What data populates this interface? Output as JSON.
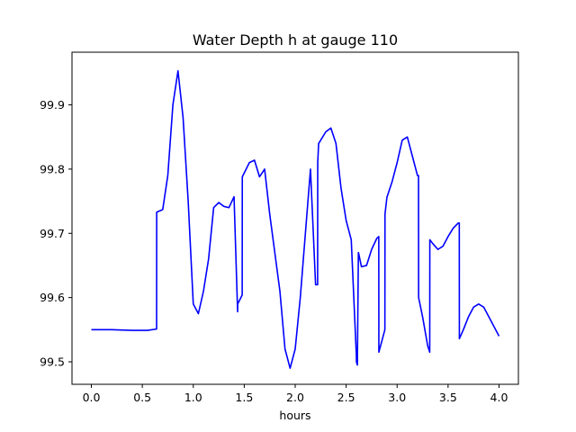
{
  "chart_data": {
    "type": "line",
    "title": "Water Depth h at gauge 110",
    "xlabel": "hours",
    "ylabel": "",
    "xlim": [
      -0.19,
      4.19
    ],
    "ylim": [
      99.465,
      99.982
    ],
    "x_ticks": [
      0.0,
      0.5,
      1.0,
      1.5,
      2.0,
      2.5,
      3.0,
      3.5,
      4.0
    ],
    "x_tick_labels": [
      "0.0",
      "0.5",
      "1.0",
      "1.5",
      "2.0",
      "2.5",
      "3.0",
      "3.5",
      "4.0"
    ],
    "y_ticks": [
      99.5,
      99.6,
      99.7,
      99.8,
      99.9
    ],
    "y_tick_labels": [
      "99.5",
      "99.6",
      "99.7",
      "99.8",
      "99.9"
    ],
    "grid": false,
    "colors": {
      "line": "#0000ff",
      "axes": "#000000",
      "background": "#ffffff"
    },
    "series": [
      {
        "x": [
          0.0,
          0.2,
          0.4,
          0.55,
          0.64,
          0.641,
          0.7,
          0.75,
          0.8,
          0.85,
          0.9,
          0.95,
          1.0,
          1.05,
          1.1,
          1.15,
          1.2,
          1.25,
          1.3,
          1.35,
          1.4,
          1.435,
          1.436,
          1.48,
          1.481,
          1.55,
          1.6,
          1.65,
          1.7,
          1.75,
          1.8,
          1.85,
          1.9,
          1.95,
          2.0,
          2.05,
          2.1,
          2.15,
          2.2,
          2.22,
          2.221,
          2.23,
          2.231,
          2.3,
          2.35,
          2.4,
          2.45,
          2.5,
          2.55,
          2.6,
          2.601,
          2.61,
          2.62,
          2.621,
          2.65,
          2.7,
          2.75,
          2.8,
          2.82,
          2.821,
          2.88,
          2.881,
          2.9,
          2.95,
          3.0,
          3.05,
          3.1,
          3.15,
          3.2,
          3.21,
          3.211,
          3.25,
          3.3,
          3.32,
          3.321,
          3.35,
          3.4,
          3.45,
          3.5,
          3.55,
          3.6,
          3.61,
          3.611,
          3.65,
          3.7,
          3.75,
          3.8,
          3.85,
          3.9,
          3.95,
          4.0
        ],
        "y": [
          99.55,
          99.55,
          99.549,
          99.549,
          99.551,
          99.733,
          99.737,
          99.79,
          99.9,
          99.953,
          99.88,
          99.75,
          99.59,
          99.575,
          99.61,
          99.66,
          99.74,
          99.748,
          99.742,
          99.74,
          99.757,
          99.578,
          99.59,
          99.604,
          99.788,
          99.81,
          99.814,
          99.788,
          99.8,
          99.73,
          99.67,
          99.61,
          99.52,
          99.49,
          99.52,
          99.6,
          99.7,
          99.8,
          99.62,
          99.62,
          99.81,
          99.84,
          99.84,
          99.858,
          99.864,
          99.84,
          99.77,
          99.72,
          99.69,
          99.51,
          99.5,
          99.495,
          99.67,
          99.67,
          99.648,
          99.65,
          99.675,
          99.692,
          99.695,
          99.515,
          99.55,
          99.73,
          99.756,
          99.78,
          99.81,
          99.845,
          99.85,
          99.82,
          99.79,
          99.79,
          99.6,
          99.57,
          99.525,
          99.515,
          99.69,
          99.684,
          99.675,
          99.68,
          99.695,
          99.708,
          99.716,
          99.716,
          99.536,
          99.55,
          99.57,
          99.585,
          99.59,
          99.585,
          99.57,
          99.555,
          99.54
        ]
      }
    ]
  }
}
